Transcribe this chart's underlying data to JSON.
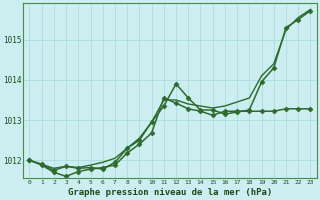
{
  "background_color": "#cceef0",
  "grid_color": "#aadddd",
  "line_color": "#2d6a2d",
  "title": "Graphe pression niveau de la mer (hPa)",
  "ylabel_ticks": [
    1012,
    1013,
    1014,
    1015
  ],
  "xlim": [
    -0.5,
    23.5
  ],
  "ylim": [
    1011.55,
    1015.9
  ],
  "series": [
    {
      "x": [
        0,
        1,
        2,
        3,
        4,
        5,
        6,
        7,
        8,
        9,
        10,
        11,
        12,
        13,
        14,
        15,
        16,
        17,
        18,
        19,
        20,
        21,
        22,
        23
      ],
      "y": [
        1012.0,
        1011.9,
        1011.8,
        1011.85,
        1011.82,
        1011.88,
        1011.95,
        1012.05,
        1012.3,
        1012.55,
        1012.95,
        1013.5,
        1013.5,
        1013.4,
        1013.35,
        1013.3,
        1013.35,
        1013.45,
        1013.55,
        1014.1,
        1014.4,
        1015.25,
        1015.55,
        1015.75
      ],
      "marker": null,
      "markersize": 0,
      "linewidth": 1.0
    },
    {
      "x": [
        0,
        1,
        2,
        3,
        4,
        5,
        6,
        7,
        8,
        9,
        10,
        11,
        12,
        13,
        14,
        15,
        16,
        17,
        18,
        19,
        20,
        21,
        22,
        23
      ],
      "y": [
        1012.0,
        1011.9,
        1011.75,
        1011.85,
        1011.8,
        1011.82,
        1011.78,
        1011.95,
        1012.3,
        1012.5,
        1012.95,
        1013.35,
        1013.9,
        1013.55,
        1013.25,
        1013.25,
        1013.15,
        1013.2,
        1013.25,
        1013.95,
        1014.3,
        1015.3,
        1015.5,
        1015.72
      ],
      "marker": "D",
      "markersize": 2.5,
      "linewidth": 1.1
    },
    {
      "x": [
        0,
        1,
        2,
        3,
        4,
        5,
        6,
        7,
        8,
        9,
        10,
        11,
        12,
        13,
        14,
        15,
        16,
        17,
        18,
        19,
        20,
        21,
        22,
        23
      ],
      "y": [
        1012.0,
        1011.88,
        1011.7,
        1011.6,
        1011.72,
        1011.78,
        1011.82,
        1011.88,
        1012.18,
        1012.4,
        1012.68,
        1013.55,
        1013.42,
        1013.28,
        1013.22,
        1013.12,
        1013.22,
        1013.22,
        1013.22,
        1013.22,
        1013.22,
        1013.28,
        1013.28,
        1013.28
      ],
      "marker": "D",
      "markersize": 2.5,
      "linewidth": 1.1
    }
  ]
}
